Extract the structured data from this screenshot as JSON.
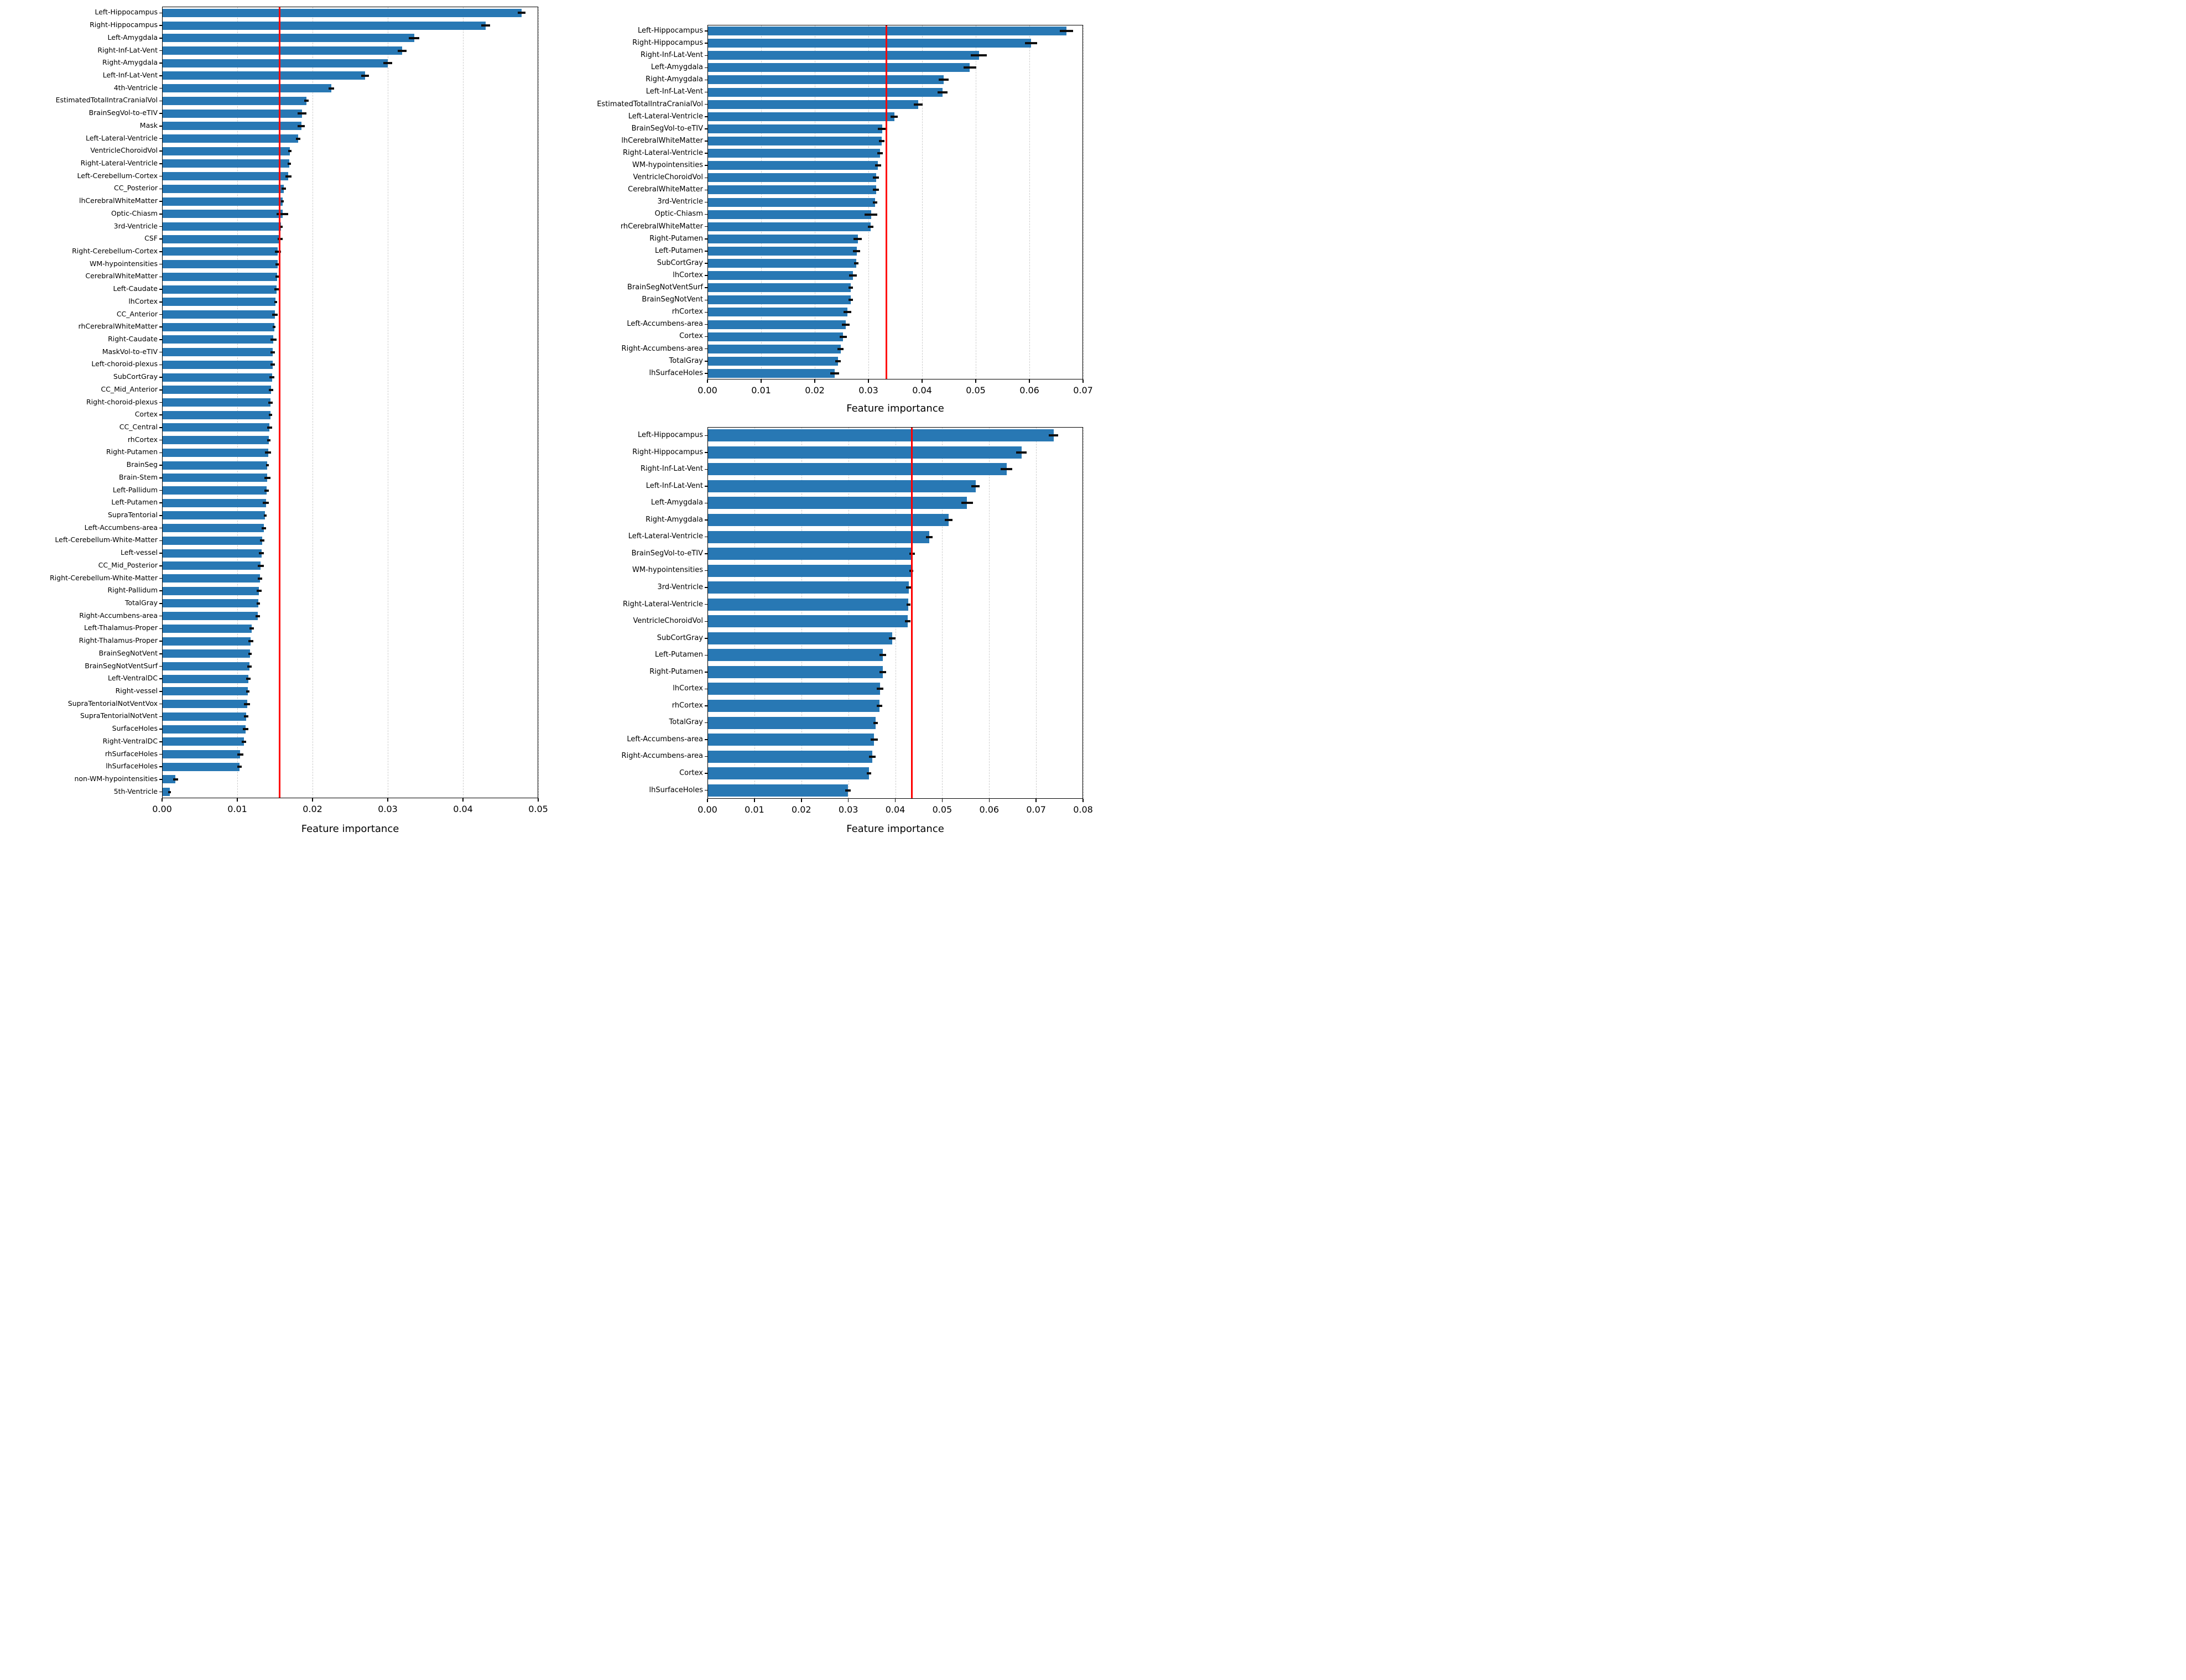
{
  "figure": {
    "bar_color": "#2878b4",
    "threshold_line_color": "#ff0000",
    "xlabel": "Feature importance"
  },
  "chart_data": [
    {
      "id": "left-importance-chart",
      "type": "bar",
      "orientation": "horizontal",
      "xlabel": "Feature importance",
      "xlim": [
        0,
        0.05
      ],
      "tick_labels": [
        "0.00",
        "0.01",
        "0.02",
        "0.03",
        "0.04",
        "0.05"
      ],
      "grid": "dashed-vertical",
      "red_line": 0.0156,
      "items": [
        {
          "label": "Left-Hippocampus",
          "value": 0.0478,
          "err": 0.0005
        },
        {
          "label": "Right-Hippocampus",
          "value": 0.043,
          "err": 0.0006
        },
        {
          "label": "Left-Amygdala",
          "value": 0.0335,
          "err": 0.0007
        },
        {
          "label": "Right-Inf-Lat-Vent",
          "value": 0.0319,
          "err": 0.0006
        },
        {
          "label": "Right-Amygdala",
          "value": 0.03,
          "err": 0.0006
        },
        {
          "label": "Left-Inf-Lat-Vent",
          "value": 0.027,
          "err": 0.0005
        },
        {
          "label": "4th-Ventricle",
          "value": 0.0225,
          "err": 0.0004
        },
        {
          "label": "EstimatedTotalIntraCranialVol",
          "value": 0.0192,
          "err": 0.0003
        },
        {
          "label": "BrainSegVol-to-eTIV",
          "value": 0.0186,
          "err": 0.0006
        },
        {
          "label": "Mask",
          "value": 0.0185,
          "err": 0.0005
        },
        {
          "label": "Left-Lateral-Ventricle",
          "value": 0.0181,
          "err": 0.0003
        },
        {
          "label": "VentricleChoroidVol",
          "value": 0.017,
          "err": 0.0002
        },
        {
          "label": "Right-Lateral-Ventricle",
          "value": 0.0169,
          "err": 0.0002
        },
        {
          "label": "Left-Cerebellum-Cortex",
          "value": 0.0168,
          "err": 0.0004
        },
        {
          "label": "CC_Posterior",
          "value": 0.0162,
          "err": 0.0003
        },
        {
          "label": "lhCerebralWhiteMatter",
          "value": 0.016,
          "err": 0.0002
        },
        {
          "label": "Optic-Chiasm",
          "value": 0.016,
          "err": 0.0008
        },
        {
          "label": "3rd-Ventricle",
          "value": 0.0158,
          "err": 0.0002
        },
        {
          "label": "CSF",
          "value": 0.0157,
          "err": 0.0003
        },
        {
          "label": "Right-Cerebellum-Cortex",
          "value": 0.0154,
          "err": 0.0004
        },
        {
          "label": "WM-hypointensities",
          "value": 0.0154,
          "err": 0.0003
        },
        {
          "label": "CerebralWhiteMatter",
          "value": 0.0153,
          "err": 0.0002
        },
        {
          "label": "Left-Caudate",
          "value": 0.0152,
          "err": 0.0003
        },
        {
          "label": "lhCortex",
          "value": 0.0151,
          "err": 0.0002
        },
        {
          "label": "CC_Anterior",
          "value": 0.015,
          "err": 0.0004
        },
        {
          "label": "rhCerebralWhiteMatter",
          "value": 0.0149,
          "err": 0.0002
        },
        {
          "label": "Right-Caudate",
          "value": 0.0148,
          "err": 0.0004
        },
        {
          "label": "MaskVol-to-eTIV",
          "value": 0.0147,
          "err": 0.0003
        },
        {
          "label": "Left-choroid-plexus",
          "value": 0.0147,
          "err": 0.0003
        },
        {
          "label": "SubCortGray",
          "value": 0.0146,
          "err": 0.0003
        },
        {
          "label": "CC_Mid_Anterior",
          "value": 0.0145,
          "err": 0.0003
        },
        {
          "label": "Right-choroid-plexus",
          "value": 0.0144,
          "err": 0.0003
        },
        {
          "label": "Cortex",
          "value": 0.0144,
          "err": 0.0002
        },
        {
          "label": "CC_Central",
          "value": 0.0143,
          "err": 0.0003
        },
        {
          "label": "rhCortex",
          "value": 0.0142,
          "err": 0.0002
        },
        {
          "label": "Right-Putamen",
          "value": 0.0141,
          "err": 0.0004
        },
        {
          "label": "BrainSeg",
          "value": 0.014,
          "err": 0.0002
        },
        {
          "label": "Brain-Stem",
          "value": 0.014,
          "err": 0.0004
        },
        {
          "label": "Left-Pallidum",
          "value": 0.0139,
          "err": 0.0003
        },
        {
          "label": "Left-Putamen",
          "value": 0.0138,
          "err": 0.0004
        },
        {
          "label": "SupraTentorial",
          "value": 0.0137,
          "err": 0.0002
        },
        {
          "label": "Left-Accumbens-area",
          "value": 0.0135,
          "err": 0.0003
        },
        {
          "label": "Left-Cerebellum-White-Matter",
          "value": 0.0133,
          "err": 0.0003
        },
        {
          "label": "Left-vessel",
          "value": 0.0132,
          "err": 0.0003
        },
        {
          "label": "CC_Mid_Posterior",
          "value": 0.0131,
          "err": 0.0004
        },
        {
          "label": "Right-Cerebellum-White-Matter",
          "value": 0.013,
          "err": 0.0003
        },
        {
          "label": "Right-Pallidum",
          "value": 0.0129,
          "err": 0.0003
        },
        {
          "label": "TotalGray",
          "value": 0.0128,
          "err": 0.0002
        },
        {
          "label": "Right-Accumbens-area",
          "value": 0.0127,
          "err": 0.0003
        },
        {
          "label": "Left-Thalamus-Proper",
          "value": 0.0119,
          "err": 0.0003
        },
        {
          "label": "Right-Thalamus-Proper",
          "value": 0.0118,
          "err": 0.0003
        },
        {
          "label": "BrainSegNotVent",
          "value": 0.0117,
          "err": 0.0002
        },
        {
          "label": "BrainSegNotVentSurf",
          "value": 0.0116,
          "err": 0.0003
        },
        {
          "label": "Left-VentralDC",
          "value": 0.0115,
          "err": 0.0003
        },
        {
          "label": "Right-vessel",
          "value": 0.0114,
          "err": 0.0002
        },
        {
          "label": "SupraTentorialNotVentVox",
          "value": 0.0113,
          "err": 0.0004
        },
        {
          "label": "SupraTentorialNotVent",
          "value": 0.0112,
          "err": 0.0003
        },
        {
          "label": "SurfaceHoles",
          "value": 0.0111,
          "err": 0.0004
        },
        {
          "label": "Right-VentralDC",
          "value": 0.0109,
          "err": 0.0003
        },
        {
          "label": "rhSurfaceHoles",
          "value": 0.0104,
          "err": 0.0004
        },
        {
          "label": "lhSurfaceHoles",
          "value": 0.0103,
          "err": 0.0003
        },
        {
          "label": "non-WM-hypointensities",
          "value": 0.0018,
          "err": 0.0003
        },
        {
          "label": "5th-Ventricle",
          "value": 0.001,
          "err": 0.0002
        }
      ]
    },
    {
      "id": "top-right-importance-chart",
      "type": "bar",
      "orientation": "horizontal",
      "xlabel": "Feature importance",
      "xlim": [
        0,
        0.07
      ],
      "tick_labels": [
        "0.00",
        "0.01",
        "0.02",
        "0.03",
        "0.04",
        "0.05",
        "0.06",
        "0.07"
      ],
      "grid": "dashed-vertical",
      "red_line": 0.0333,
      "items": [
        {
          "label": "Left-Hippocampus",
          "value": 0.0669,
          "err": 0.0012
        },
        {
          "label": "Right-Hippocampus",
          "value": 0.0603,
          "err": 0.0011
        },
        {
          "label": "Right-Inf-Lat-Vent",
          "value": 0.0506,
          "err": 0.0015
        },
        {
          "label": "Left-Amygdala",
          "value": 0.0489,
          "err": 0.0012
        },
        {
          "label": "Right-Amygdala",
          "value": 0.044,
          "err": 0.0009
        },
        {
          "label": "Left-Inf-Lat-Vent",
          "value": 0.0438,
          "err": 0.0009
        },
        {
          "label": "EstimatedTotalIntraCranialVol",
          "value": 0.0393,
          "err": 0.0008
        },
        {
          "label": "Left-Lateral-Ventricle",
          "value": 0.0348,
          "err": 0.0007
        },
        {
          "label": "BrainSegVol-to-eTIV",
          "value": 0.0326,
          "err": 0.0008
        },
        {
          "label": "lhCerebralWhiteMatter",
          "value": 0.0325,
          "err": 0.0005
        },
        {
          "label": "Right-Lateral-Ventricle",
          "value": 0.0322,
          "err": 0.0005
        },
        {
          "label": "WM-hypointensities",
          "value": 0.0318,
          "err": 0.0006
        },
        {
          "label": "VentricleChoroidVol",
          "value": 0.0314,
          "err": 0.0006
        },
        {
          "label": "CerebralWhiteMatter",
          "value": 0.0314,
          "err": 0.0006
        },
        {
          "label": "3rd-Ventricle",
          "value": 0.0312,
          "err": 0.0004
        },
        {
          "label": "Optic-Chiasm",
          "value": 0.0305,
          "err": 0.0012
        },
        {
          "label": "rhCerebralWhiteMatter",
          "value": 0.0304,
          "err": 0.0005
        },
        {
          "label": "Right-Putamen",
          "value": 0.028,
          "err": 0.0008
        },
        {
          "label": "Left-Putamen",
          "value": 0.0278,
          "err": 0.0007
        },
        {
          "label": "SubCortGray",
          "value": 0.0277,
          "err": 0.0004
        },
        {
          "label": "lhCortex",
          "value": 0.0271,
          "err": 0.0007
        },
        {
          "label": "BrainSegNotVentSurf",
          "value": 0.0267,
          "err": 0.0004
        },
        {
          "label": "BrainSegNotVent",
          "value": 0.0267,
          "err": 0.0004
        },
        {
          "label": "rhCortex",
          "value": 0.0261,
          "err": 0.0007
        },
        {
          "label": "Left-Accumbens-area",
          "value": 0.0258,
          "err": 0.0007
        },
        {
          "label": "Cortex",
          "value": 0.0253,
          "err": 0.0007
        },
        {
          "label": "Right-Accumbens-area",
          "value": 0.0248,
          "err": 0.0006
        },
        {
          "label": "TotalGray",
          "value": 0.0243,
          "err": 0.0005
        },
        {
          "label": "lhSurfaceHoles",
          "value": 0.0237,
          "err": 0.0008
        }
      ]
    },
    {
      "id": "bottom-right-importance-chart",
      "type": "bar",
      "orientation": "horizontal",
      "xlabel": "Feature importance",
      "xlim": [
        0,
        0.08
      ],
      "tick_labels": [
        "0.00",
        "0.01",
        "0.02",
        "0.03",
        "0.04",
        "0.05",
        "0.06",
        "0.07",
        "0.08"
      ],
      "grid": "dashed-vertical",
      "red_line": 0.0435,
      "items": [
        {
          "label": "Left-Hippocampus",
          "value": 0.0737,
          "err": 0.001
        },
        {
          "label": "Right-Hippocampus",
          "value": 0.0669,
          "err": 0.0011
        },
        {
          "label": "Right-Inf-Lat-Vent",
          "value": 0.0637,
          "err": 0.0012
        },
        {
          "label": "Left-Inf-Lat-Vent",
          "value": 0.0571,
          "err": 0.0009
        },
        {
          "label": "Left-Amygdala",
          "value": 0.0553,
          "err": 0.0012
        },
        {
          "label": "Right-Amygdala",
          "value": 0.0514,
          "err": 0.0008
        },
        {
          "label": "Left-Lateral-Ventricle",
          "value": 0.0472,
          "err": 0.0007
        },
        {
          "label": "BrainSegVol-to-eTIV",
          "value": 0.0436,
          "err": 0.0006
        },
        {
          "label": "WM-hypointensities",
          "value": 0.0434,
          "err": 0.0004
        },
        {
          "label": "3rd-Ventricle",
          "value": 0.0429,
          "err": 0.0006
        },
        {
          "label": "Right-Lateral-Ventricle",
          "value": 0.0428,
          "err": 0.0004
        },
        {
          "label": "VentricleChoroidVol",
          "value": 0.0427,
          "err": 0.0006
        },
        {
          "label": "SubCortGray",
          "value": 0.0394,
          "err": 0.0007
        },
        {
          "label": "Left-Putamen",
          "value": 0.0374,
          "err": 0.0007
        },
        {
          "label": "Right-Putamen",
          "value": 0.0373,
          "err": 0.0007
        },
        {
          "label": "lhCortex",
          "value": 0.0368,
          "err": 0.0007
        },
        {
          "label": "rhCortex",
          "value": 0.0366,
          "err": 0.0006
        },
        {
          "label": "TotalGray",
          "value": 0.0358,
          "err": 0.0005
        },
        {
          "label": "Left-Accumbens-area",
          "value": 0.0355,
          "err": 0.0008
        },
        {
          "label": "Right-Accumbens-area",
          "value": 0.0351,
          "err": 0.0007
        },
        {
          "label": "Cortex",
          "value": 0.0344,
          "err": 0.0005
        },
        {
          "label": "lhSurfaceHoles",
          "value": 0.0299,
          "err": 0.0006
        }
      ]
    }
  ]
}
